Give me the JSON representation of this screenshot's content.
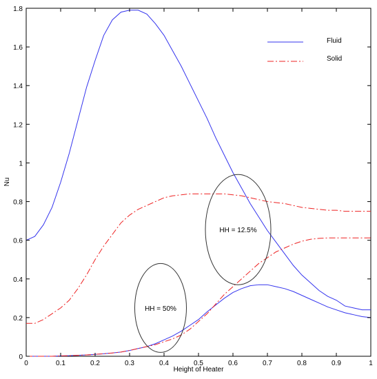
{
  "chart_data": {
    "type": "line",
    "title": "",
    "xlabel": "Height of Heater",
    "ylabel": "Nu",
    "xlim": [
      0,
      1
    ],
    "ylim": [
      0,
      1.8
    ],
    "xticks": [
      "0",
      "0.1",
      "0.2",
      "0.3",
      "0.4",
      "0.5",
      "0.6",
      "0.7",
      "0.8",
      "0.9",
      "1"
    ],
    "yticks": [
      "0",
      "0.2",
      "0.4",
      "0.6",
      "0.8",
      "1",
      "1.2",
      "1.4",
      "1.6",
      "1.8"
    ],
    "legend": {
      "position": "top-right",
      "entries": [
        "Fluid",
        "Solid"
      ]
    },
    "grid": false,
    "series": [
      {
        "name": "Fluid",
        "group": "HH = 12.5%",
        "color": "#3333ee",
        "style": "solid",
        "x": [
          0,
          0.025,
          0.05,
          0.075,
          0.1,
          0.125,
          0.15,
          0.175,
          0.2,
          0.225,
          0.25,
          0.275,
          0.3,
          0.325,
          0.35,
          0.375,
          0.4,
          0.425,
          0.45,
          0.475,
          0.5,
          0.525,
          0.55,
          0.575,
          0.6,
          0.625,
          0.65,
          0.675,
          0.7,
          0.725,
          0.75,
          0.775,
          0.8,
          0.825,
          0.85,
          0.875,
          0.9,
          0.925,
          0.95,
          0.975,
          1
        ],
        "y": [
          0.6,
          0.62,
          0.68,
          0.77,
          0.9,
          1.05,
          1.22,
          1.39,
          1.53,
          1.66,
          1.74,
          1.78,
          1.79,
          1.79,
          1.77,
          1.72,
          1.66,
          1.58,
          1.5,
          1.41,
          1.32,
          1.23,
          1.13,
          1.04,
          0.95,
          0.87,
          0.79,
          0.72,
          0.65,
          0.59,
          0.53,
          0.47,
          0.42,
          0.38,
          0.34,
          0.31,
          0.29,
          0.26,
          0.25,
          0.24,
          0.24
        ]
      },
      {
        "name": "Solid",
        "group": "HH = 12.5%",
        "color": "#ee2222",
        "style": "dashdot",
        "x": [
          0,
          0.025,
          0.05,
          0.075,
          0.1,
          0.125,
          0.15,
          0.175,
          0.2,
          0.225,
          0.25,
          0.275,
          0.3,
          0.325,
          0.35,
          0.375,
          0.4,
          0.425,
          0.45,
          0.475,
          0.5,
          0.525,
          0.55,
          0.575,
          0.6,
          0.625,
          0.65,
          0.675,
          0.7,
          0.725,
          0.75,
          0.775,
          0.8,
          0.825,
          0.85,
          0.875,
          0.9,
          0.925,
          0.95,
          0.975,
          1
        ],
        "y": [
          0.17,
          0.17,
          0.19,
          0.22,
          0.25,
          0.29,
          0.35,
          0.42,
          0.5,
          0.57,
          0.63,
          0.69,
          0.73,
          0.76,
          0.78,
          0.8,
          0.82,
          0.83,
          0.835,
          0.84,
          0.84,
          0.84,
          0.84,
          0.84,
          0.835,
          0.83,
          0.82,
          0.81,
          0.8,
          0.795,
          0.79,
          0.78,
          0.77,
          0.765,
          0.76,
          0.755,
          0.755,
          0.75,
          0.75,
          0.75,
          0.75
        ]
      },
      {
        "name": "Fluid",
        "group": "HH = 50%",
        "color": "#3333ee",
        "style": "solid",
        "x": [
          0,
          0.025,
          0.05,
          0.075,
          0.1,
          0.125,
          0.15,
          0.175,
          0.2,
          0.225,
          0.25,
          0.275,
          0.3,
          0.325,
          0.35,
          0.375,
          0.4,
          0.425,
          0.45,
          0.475,
          0.5,
          0.525,
          0.55,
          0.575,
          0.6,
          0.625,
          0.65,
          0.675,
          0.7,
          0.725,
          0.75,
          0.775,
          0.8,
          0.825,
          0.85,
          0.875,
          0.9,
          0.925,
          0.95,
          0.975,
          1
        ],
        "y": [
          0,
          0,
          0,
          0,
          0.002,
          0.003,
          0.005,
          0.007,
          0.01,
          0.013,
          0.017,
          0.022,
          0.03,
          0.04,
          0.05,
          0.065,
          0.085,
          0.105,
          0.13,
          0.16,
          0.19,
          0.23,
          0.265,
          0.3,
          0.33,
          0.35,
          0.365,
          0.37,
          0.37,
          0.36,
          0.35,
          0.335,
          0.315,
          0.295,
          0.275,
          0.255,
          0.24,
          0.225,
          0.215,
          0.205,
          0.2
        ]
      },
      {
        "name": "Solid",
        "group": "HH = 50%",
        "color": "#ee2222",
        "style": "dashdot",
        "x": [
          0,
          0.025,
          0.05,
          0.075,
          0.1,
          0.125,
          0.15,
          0.175,
          0.2,
          0.225,
          0.25,
          0.275,
          0.3,
          0.325,
          0.35,
          0.375,
          0.4,
          0.425,
          0.45,
          0.475,
          0.5,
          0.525,
          0.55,
          0.575,
          0.6,
          0.625,
          0.65,
          0.675,
          0.7,
          0.725,
          0.75,
          0.775,
          0.8,
          0.825,
          0.85,
          0.875,
          0.9,
          0.925,
          0.95,
          0.975,
          1
        ],
        "y": [
          0,
          0,
          0,
          0,
          0.002,
          0.003,
          0.005,
          0.007,
          0.01,
          0.013,
          0.017,
          0.022,
          0.03,
          0.04,
          0.05,
          0.06,
          0.075,
          0.09,
          0.11,
          0.14,
          0.18,
          0.22,
          0.27,
          0.32,
          0.36,
          0.4,
          0.44,
          0.48,
          0.51,
          0.54,
          0.56,
          0.58,
          0.595,
          0.605,
          0.61,
          0.612,
          0.612,
          0.612,
          0.612,
          0.612,
          0.612
        ]
      }
    ],
    "annotations": [
      {
        "text": "HH = 12.5%",
        "shape": "ellipse",
        "cx": 0.615,
        "cy": 0.655,
        "rx": 0.095,
        "ry": 0.285
      },
      {
        "text": "HH = 50%",
        "shape": "ellipse",
        "cx": 0.39,
        "cy": 0.25,
        "rx": 0.075,
        "ry": 0.23
      }
    ]
  }
}
